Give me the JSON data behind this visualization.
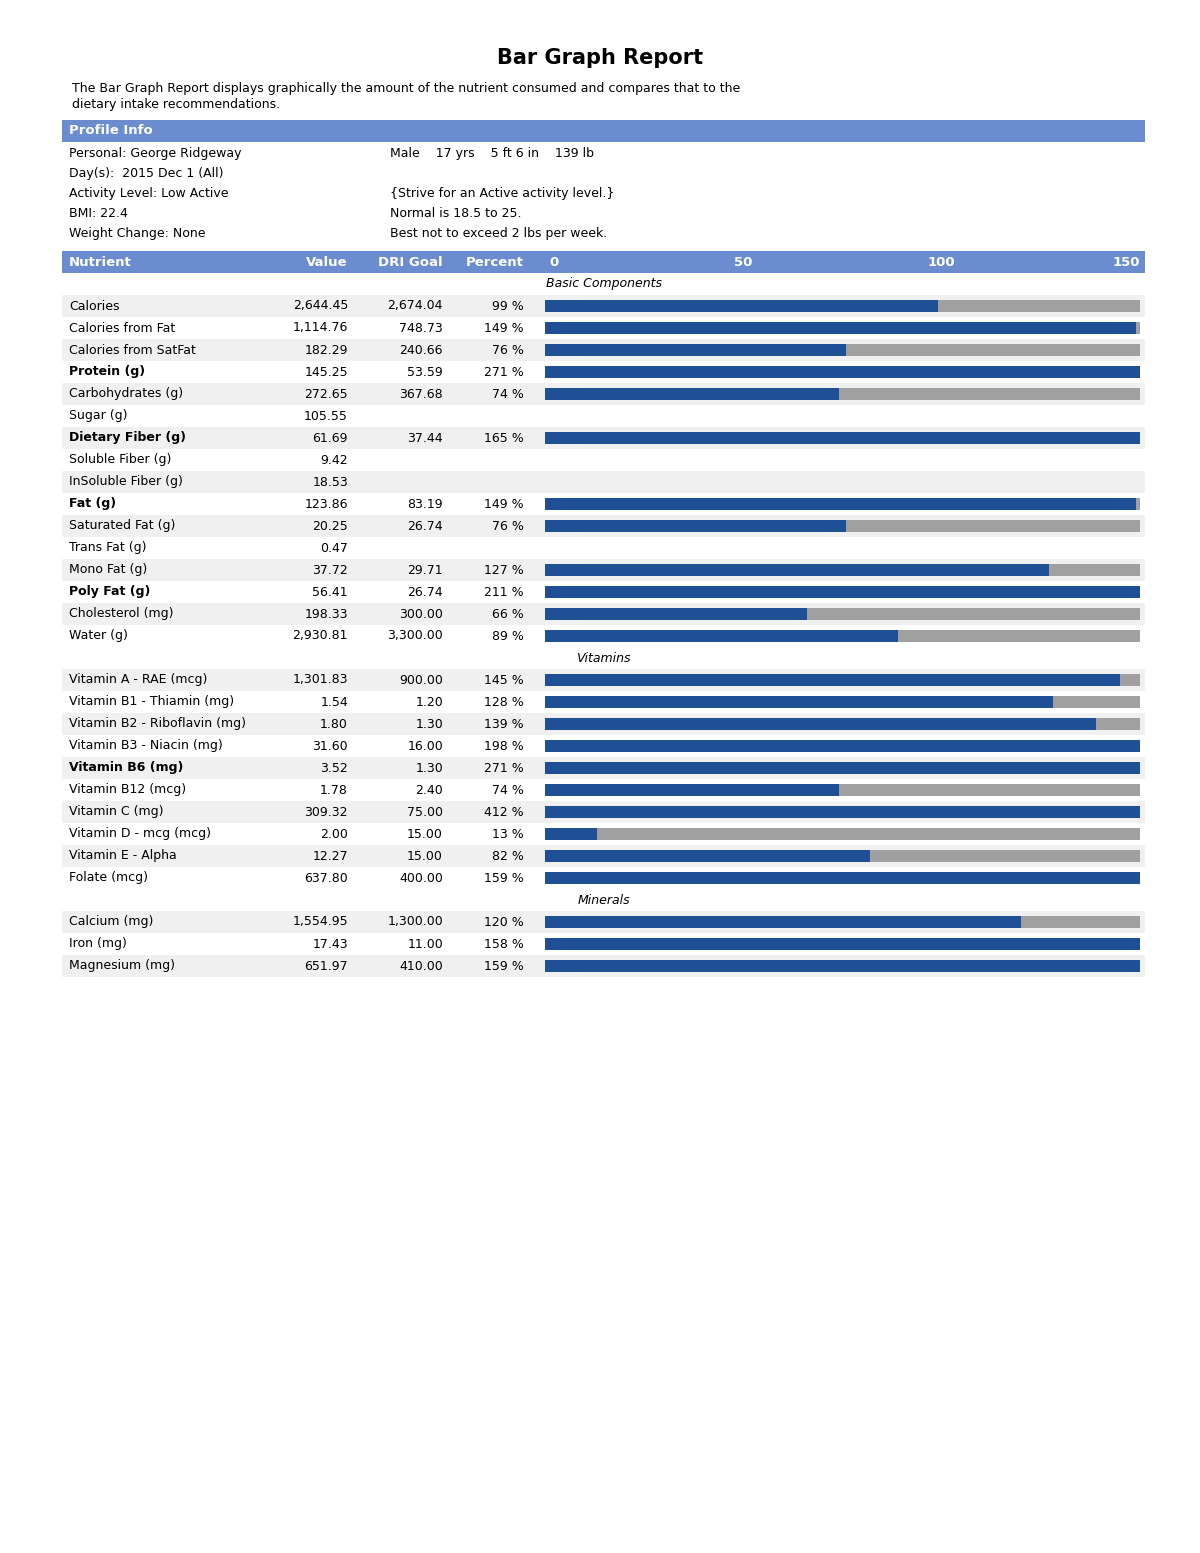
{
  "title": "Bar Graph Report",
  "subtitle_line1": "The Bar Graph Report displays graphically the amount of the nutrient consumed and compares that to the",
  "subtitle_line2": "dietary intake recommendations.",
  "profile_header": "Profile Info",
  "header_bg": "#6b8cce",
  "header_text_color": "#ffffff",
  "bar_color": "#1f5096",
  "bar_bg_color": "#a0a0a0",
  "row_colors": [
    "#f0f0f0",
    "#ffffff"
  ],
  "profile_data": [
    [
      "Personal: George Ridgeway",
      "Male    17 yrs    5 ft 6 in    139 lb"
    ],
    [
      "Day(s):  2015 Dec 1 (All)",
      null
    ],
    [
      "Activity Level: Low Active",
      "{Strive for an Active activity level.}"
    ],
    [
      "BMI: 22.4",
      "Normal is 18.5 to 25."
    ],
    [
      "Weight Change: None",
      "Best not to exceed 2 lbs per week."
    ]
  ],
  "rows": [
    {
      "section": "Basic Components"
    },
    {
      "nutrient": "Calories",
      "value": "2,644.45",
      "dri": "2,674.04",
      "percent": 99,
      "bold": false
    },
    {
      "nutrient": "Calories from Fat",
      "value": "1,114.76",
      "dri": "748.73",
      "percent": 149,
      "bold": false
    },
    {
      "nutrient": "Calories from SatFat",
      "value": "182.29",
      "dri": "240.66",
      "percent": 76,
      "bold": false
    },
    {
      "nutrient": "Protein (g)",
      "value": "145.25",
      "dri": "53.59",
      "percent": 271,
      "bold": true
    },
    {
      "nutrient": "Carbohydrates (g)",
      "value": "272.65",
      "dri": "367.68",
      "percent": 74,
      "bold": false
    },
    {
      "nutrient": "Sugar (g)",
      "value": "105.55",
      "dri": null,
      "percent": null,
      "bold": false
    },
    {
      "nutrient": "Dietary Fiber (g)",
      "value": "61.69",
      "dri": "37.44",
      "percent": 165,
      "bold": true
    },
    {
      "nutrient": "Soluble Fiber (g)",
      "value": "9.42",
      "dri": null,
      "percent": null,
      "bold": false
    },
    {
      "nutrient": "InSoluble Fiber (g)",
      "value": "18.53",
      "dri": null,
      "percent": null,
      "bold": false
    },
    {
      "nutrient": "Fat (g)",
      "value": "123.86",
      "dri": "83.19",
      "percent": 149,
      "bold": true
    },
    {
      "nutrient": "Saturated Fat (g)",
      "value": "20.25",
      "dri": "26.74",
      "percent": 76,
      "bold": false
    },
    {
      "nutrient": "Trans Fat (g)",
      "value": "0.47",
      "dri": null,
      "percent": null,
      "bold": false
    },
    {
      "nutrient": "Mono Fat (g)",
      "value": "37.72",
      "dri": "29.71",
      "percent": 127,
      "bold": false
    },
    {
      "nutrient": "Poly Fat (g)",
      "value": "56.41",
      "dri": "26.74",
      "percent": 211,
      "bold": true
    },
    {
      "nutrient": "Cholesterol (mg)",
      "value": "198.33",
      "dri": "300.00",
      "percent": 66,
      "bold": false
    },
    {
      "nutrient": "Water (g)",
      "value": "2,930.81",
      "dri": "3,300.00",
      "percent": 89,
      "bold": false
    },
    {
      "section": "Vitamins"
    },
    {
      "nutrient": "Vitamin A - RAE (mcg)",
      "value": "1,301.83",
      "dri": "900.00",
      "percent": 145,
      "bold": false
    },
    {
      "nutrient": "Vitamin B1 - Thiamin (mg)",
      "value": "1.54",
      "dri": "1.20",
      "percent": 128,
      "bold": false
    },
    {
      "nutrient": "Vitamin B2 - Riboflavin (mg)",
      "value": "1.80",
      "dri": "1.30",
      "percent": 139,
      "bold": false
    },
    {
      "nutrient": "Vitamin B3 - Niacin (mg)",
      "value": "31.60",
      "dri": "16.00",
      "percent": 198,
      "bold": false
    },
    {
      "nutrient": "Vitamin B6 (mg)",
      "value": "3.52",
      "dri": "1.30",
      "percent": 271,
      "bold": true
    },
    {
      "nutrient": "Vitamin B12 (mcg)",
      "value": "1.78",
      "dri": "2.40",
      "percent": 74,
      "bold": false
    },
    {
      "nutrient": "Vitamin C (mg)",
      "value": "309.32",
      "dri": "75.00",
      "percent": 412,
      "bold": false
    },
    {
      "nutrient": "Vitamin D - mcg (mcg)",
      "value": "2.00",
      "dri": "15.00",
      "percent": 13,
      "bold": false
    },
    {
      "nutrient": "Vitamin E - Alpha",
      "value": "12.27",
      "dri": "15.00",
      "percent": 82,
      "bold": false
    },
    {
      "nutrient": "Folate (mcg)",
      "value": "637.80",
      "dri": "400.00",
      "percent": 159,
      "bold": false
    },
    {
      "section": "Minerals"
    },
    {
      "nutrient": "Calcium (mg)",
      "value": "1,554.95",
      "dri": "1,300.00",
      "percent": 120,
      "bold": false
    },
    {
      "nutrient": "Iron (mg)",
      "value": "17.43",
      "dri": "11.00",
      "percent": 158,
      "bold": false
    },
    {
      "nutrient": "Magnesium (mg)",
      "value": "651.97",
      "dri": "410.00",
      "percent": 159,
      "bold": false
    }
  ]
}
